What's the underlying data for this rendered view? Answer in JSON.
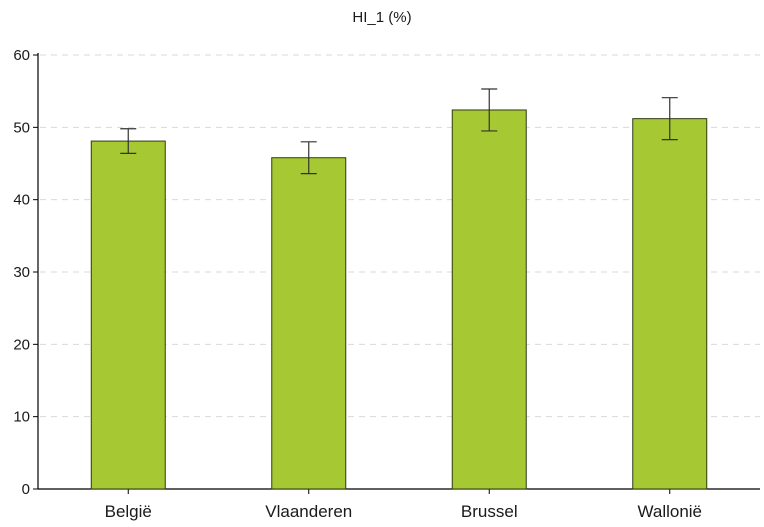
{
  "chart_data": {
    "type": "bar",
    "title": "HI_1 (%)",
    "xlabel": "",
    "ylabel": "",
    "categories": [
      "België",
      "Vlaanderen",
      "Brussel",
      "Wallonië"
    ],
    "series": [
      {
        "values": [
          48.1,
          45.8,
          52.4,
          51.2
        ],
        "error_low": [
          46.4,
          43.6,
          49.5,
          48.3
        ],
        "error_high": [
          49.8,
          48.0,
          55.3,
          54.1
        ]
      }
    ],
    "ylim": [
      0,
      60
    ],
    "yticks": [
      0,
      10,
      20,
      30,
      40,
      50,
      60
    ],
    "grid": true,
    "legend": "none",
    "colors": {
      "bar_fill": "#a6c832",
      "bar_stroke": "#2f3a12",
      "grid": "#d9d9d9",
      "axis": "#000000",
      "error_bar": "#333333"
    }
  }
}
